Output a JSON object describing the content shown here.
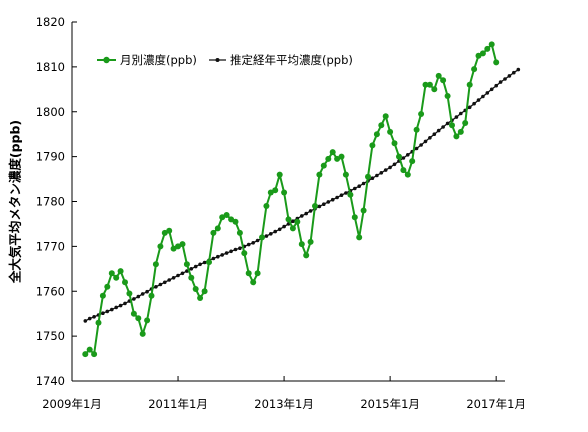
{
  "chart_data": {
    "type": "line",
    "ylabel": "全大気平均メタン濃度(ppb)",
    "ylim": [
      1740,
      1820
    ],
    "yticks": [
      1740,
      1750,
      1760,
      1770,
      1780,
      1790,
      1800,
      1810,
      1820
    ],
    "xlim": [
      0,
      98
    ],
    "xticks": [
      {
        "label": "2009年1月",
        "month": 0
      },
      {
        "label": "2011年1月",
        "month": 24
      },
      {
        "label": "2013年1月",
        "month": 48
      },
      {
        "label": "2015年1月",
        "month": 72
      },
      {
        "label": "2017年1月",
        "month": 96
      }
    ],
    "legend": "top-left",
    "grid": false,
    "series": [
      {
        "name": "月別濃度(ppb)",
        "color": "#1a9a1a",
        "marker": "circle",
        "x_start_month": 3,
        "values": [
          1746.0,
          1747.0,
          1746.0,
          1753.0,
          1759.0,
          1761.0,
          1764.0,
          1763.0,
          1764.5,
          1762.0,
          1759.5,
          1755.0,
          1754.0,
          1750.5,
          1753.5,
          1759.0,
          1766.0,
          1770.0,
          1773.0,
          1773.5,
          1769.5,
          1770.0,
          1770.5,
          1766.0,
          1763.0,
          1760.5,
          1758.5,
          1760.0,
          1766.5,
          1773.0,
          1774.0,
          1776.5,
          1777.0,
          1776.0,
          1775.5,
          1773.0,
          1768.5,
          1764.0,
          1762.0,
          1764.0,
          1772.0,
          1779.0,
          1782.0,
          1782.5,
          1786.0,
          1782.0,
          1776.0,
          1774.0,
          1775.5,
          1770.5,
          1768.0,
          1771.0,
          1779.0,
          1786.0,
          1788.0,
          1789.5,
          1791.0,
          1789.5,
          1790.0,
          1786.0,
          1781.5,
          1776.5,
          1772.0,
          1778.0,
          1785.5,
          1792.5,
          1795.0,
          1797.0,
          1799.0,
          1795.5,
          1793.0,
          1790.0,
          1787.0,
          1786.0,
          1789.0,
          1796.0,
          1799.5,
          1806.0,
          1806.0,
          1805.0,
          1808.0,
          1807.0,
          1803.5,
          1797.0,
          1794.5,
          1795.5,
          1797.5,
          1806.0,
          1809.5,
          1812.5,
          1813.0,
          1814.0,
          1815.0,
          1811.0
        ]
      },
      {
        "name": "推定経年平均濃度(ppb)",
        "color": "#111111",
        "marker": "dot",
        "x_start_month": 3,
        "values": [
          1753.4,
          1753.9,
          1754.3,
          1754.7,
          1755.1,
          1755.5,
          1755.9,
          1756.4,
          1756.8,
          1757.3,
          1757.8,
          1758.3,
          1758.8,
          1759.4,
          1759.9,
          1760.5,
          1761.0,
          1761.5,
          1762.0,
          1762.5,
          1763.0,
          1763.5,
          1764.0,
          1764.5,
          1765.0,
          1765.5,
          1766.0,
          1766.4,
          1766.9,
          1767.3,
          1767.7,
          1768.1,
          1768.5,
          1768.9,
          1769.3,
          1769.6,
          1770.0,
          1770.4,
          1770.8,
          1771.3,
          1771.8,
          1772.3,
          1772.8,
          1773.3,
          1773.8,
          1774.4,
          1775.0,
          1775.6,
          1776.2,
          1776.8,
          1777.3,
          1777.9,
          1778.4,
          1778.9,
          1779.4,
          1779.9,
          1780.4,
          1780.9,
          1781.4,
          1781.9,
          1782.4,
          1782.9,
          1783.4,
          1784.0,
          1784.6,
          1785.2,
          1785.8,
          1786.4,
          1787.0,
          1787.6,
          1788.3,
          1789.0,
          1789.7,
          1790.4,
          1791.1,
          1791.8,
          1792.6,
          1793.4,
          1794.2,
          1795.0,
          1795.8,
          1796.6,
          1797.4,
          1798.1,
          1798.8,
          1799.6,
          1800.3,
          1801.0,
          1801.8,
          1802.6,
          1803.4,
          1804.2,
          1805.0,
          1805.8,
          1806.6,
          1807.3,
          1808.0,
          1808.7,
          1809.4
        ]
      }
    ]
  }
}
